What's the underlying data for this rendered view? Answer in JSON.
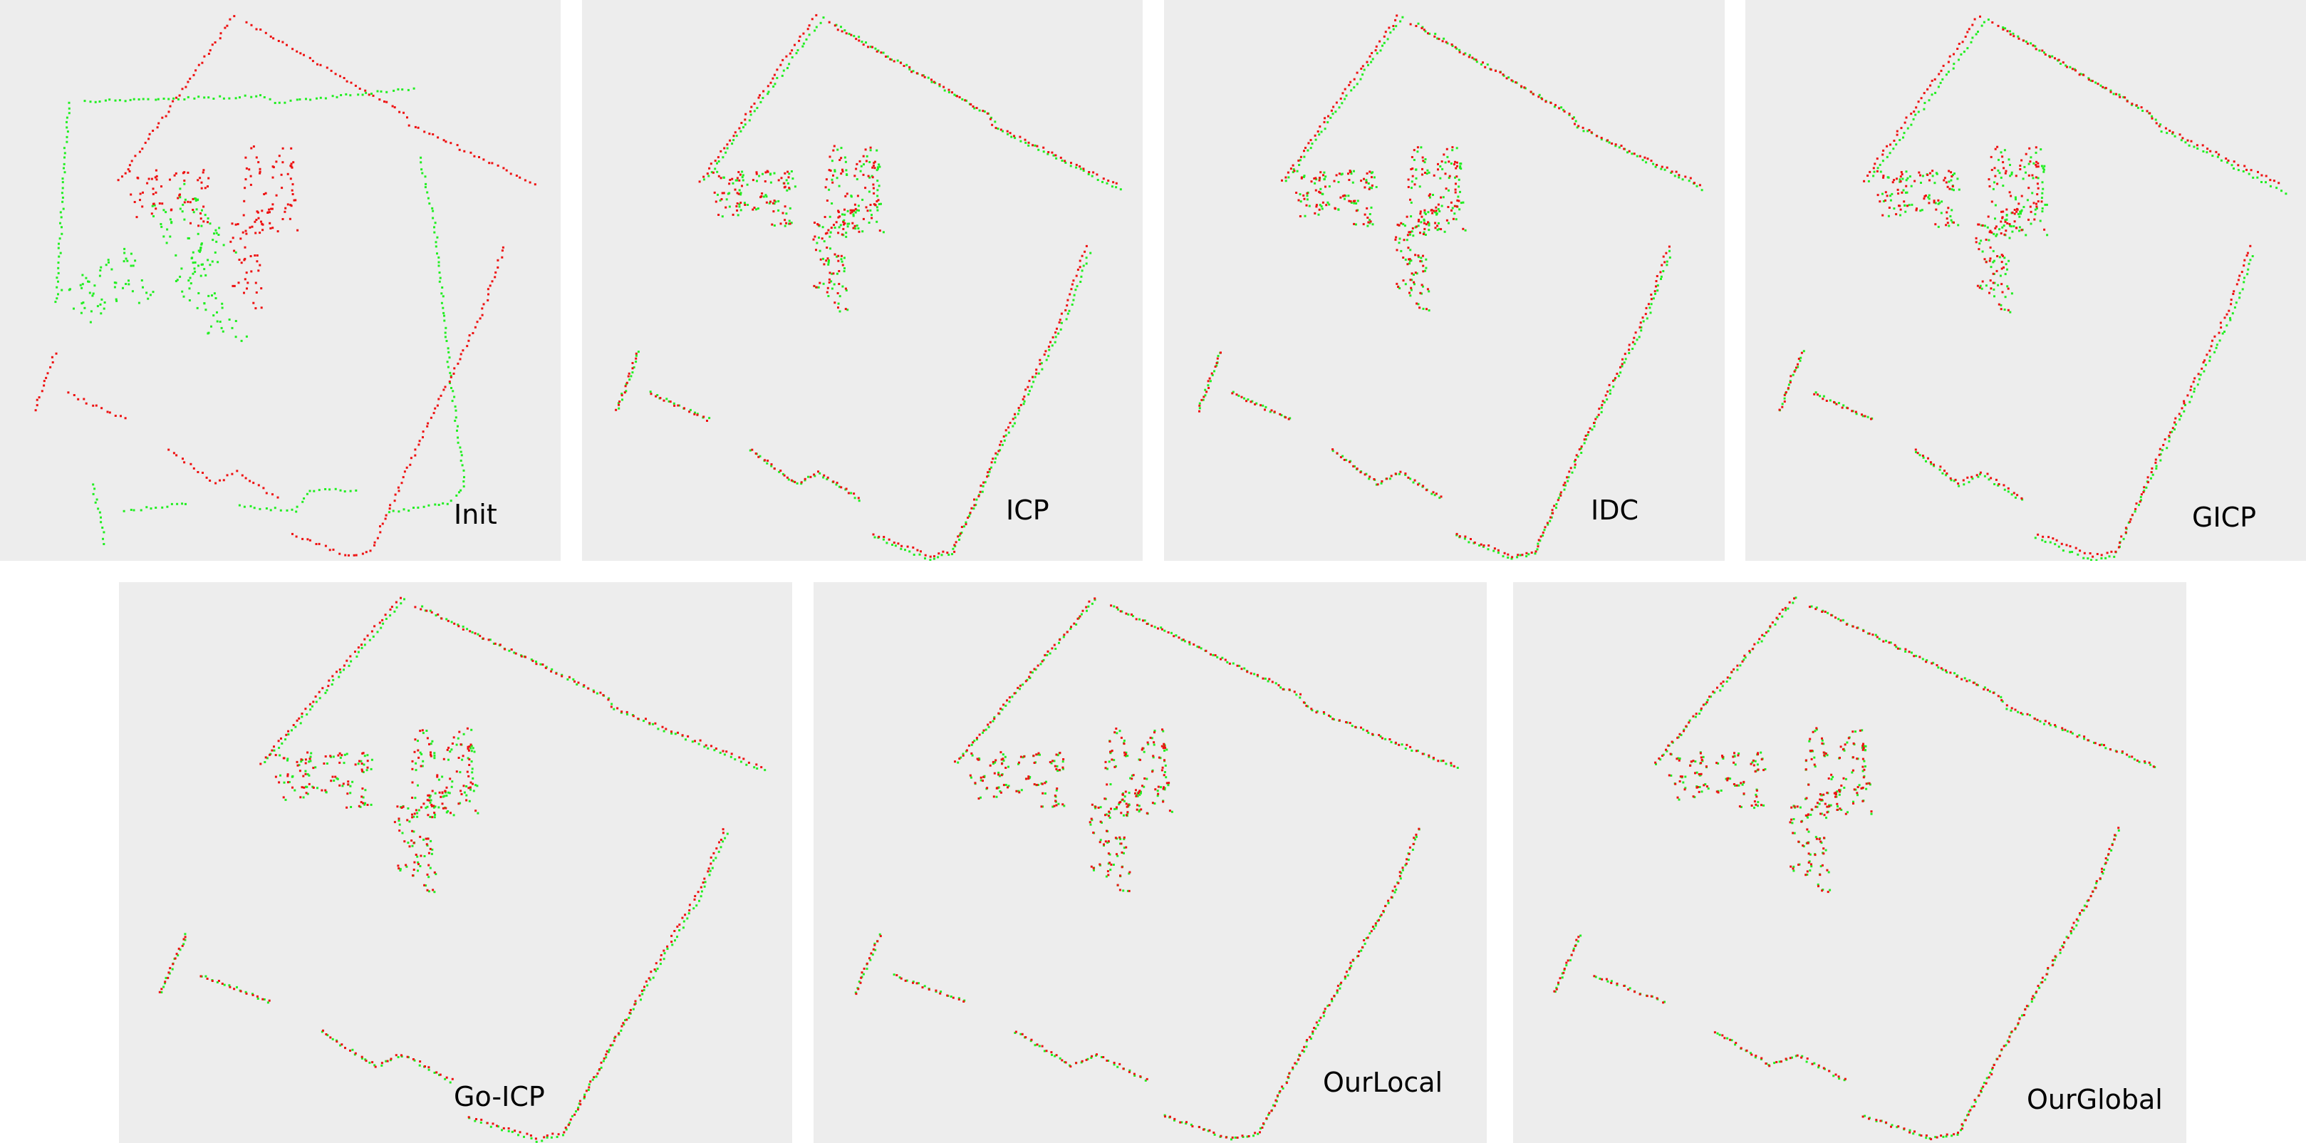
{
  "figure": {
    "panels": [
      {
        "label": "Init"
      },
      {
        "label": "ICP"
      },
      {
        "label": "IDC"
      },
      {
        "label": "GICP"
      },
      {
        "label": "Go-ICP"
      },
      {
        "label": "OurLocal"
      },
      {
        "label": "OurGlobal"
      }
    ]
  },
  "colors": {
    "background": "#ededed",
    "source_points": "#ee1111",
    "target_points": "#22ee22"
  }
}
